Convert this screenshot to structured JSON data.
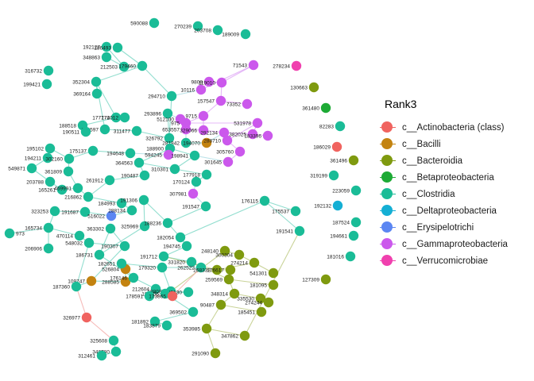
{
  "legend": {
    "title": "Rank3",
    "entries": [
      {
        "label": "c__Actinobacteria (class)",
        "color": "#F0635F"
      },
      {
        "label": "c__Bacilli",
        "color": "#C38310"
      },
      {
        "label": "c__Bacteroidia",
        "color": "#7F9A0F"
      },
      {
        "label": "c__Betaproteobacteria",
        "color": "#1DAA35"
      },
      {
        "label": "c__Clostridia",
        "color": "#1ABC97"
      },
      {
        "label": "c__Deltaproteobacteria",
        "color": "#14AFD4"
      },
      {
        "label": "c__Erysipelotrichi",
        "color": "#5B86F2"
      },
      {
        "label": "c__Gammaproteobacteria",
        "color": "#CB58EC"
      },
      {
        "label": "c__Verrucomicrobiae",
        "color": "#F040AE"
      }
    ]
  },
  "network": {
    "nodes": [
      {
        "id": "590088",
        "class": "c__Clostridia"
      },
      {
        "id": "270239",
        "class": "c__Clostridia"
      },
      {
        "id": "203708",
        "class": "c__Clostridia"
      },
      {
        "id": "189009",
        "class": "c__Clostridia"
      },
      {
        "id": "192127",
        "class": "c__Clostridia"
      },
      {
        "id": "186493",
        "class": "c__Clostridia"
      },
      {
        "id": "348863",
        "class": "c__Clostridia"
      },
      {
        "id": "212503",
        "class": "c__Clostridia"
      },
      {
        "id": "179460",
        "class": "c__Clostridia"
      },
      {
        "id": "316732",
        "class": "c__Clostridia"
      },
      {
        "id": "199421",
        "class": "c__Clostridia"
      },
      {
        "id": "352304",
        "class": "c__Clostridia"
      },
      {
        "id": "369164",
        "class": "c__Clostridia"
      },
      {
        "id": "294710",
        "class": "c__Clostridia"
      },
      {
        "id": "71543",
        "class": "c__Gammaproteobacteria"
      },
      {
        "id": "278234",
        "class": "c__Verrucomicrobiae"
      },
      {
        "id": "130663",
        "class": "c__Bacteroidia"
      },
      {
        "id": "10116",
        "class": "c__Gammaproteobacteria"
      },
      {
        "id": "9808",
        "class": "c__Gammaproteobacteria"
      },
      {
        "id": "119010",
        "class": "c__Gammaproteobacteria"
      },
      {
        "id": "157547",
        "class": "c__Gammaproteobacteria"
      },
      {
        "id": "73352",
        "class": "c__Gammaproteobacteria"
      },
      {
        "id": "361480",
        "class": "c__Betaproteobacteria"
      },
      {
        "id": "293896",
        "class": "c__Clostridia"
      },
      {
        "id": "512100",
        "class": "c__Gammaproteobacteria"
      },
      {
        "id": "9715",
        "class": "c__Gammaproteobacteria"
      },
      {
        "id": "177772",
        "class": "c__Clostridia"
      },
      {
        "id": "174012",
        "class": "c__Clostridia"
      },
      {
        "id": "975",
        "class": "c__Gammaproteobacteria"
      },
      {
        "id": "531978",
        "class": "c__Gammaproteobacteria"
      },
      {
        "id": "82283",
        "class": "c__Clostridia"
      },
      {
        "id": "188518",
        "class": "c__Clostridia"
      },
      {
        "id": "190597",
        "class": "c__Clostridia"
      },
      {
        "id": "311477",
        "class": "c__Clostridia"
      },
      {
        "id": "190511",
        "class": "c__Clostridia"
      },
      {
        "id": "653557",
        "class": "c__Gammaproteobacteria"
      },
      {
        "id": "329066",
        "class": "c__Gammaproteobacteria"
      },
      {
        "id": "292134",
        "class": "c__Gammaproteobacteria"
      },
      {
        "id": "382025",
        "class": "c__Gammaproteobacteria"
      },
      {
        "id": "183396",
        "class": "c__Gammaproteobacteria"
      },
      {
        "id": "326792",
        "class": "c__Clostridia"
      },
      {
        "id": "281842",
        "class": "c__Clostridia"
      },
      {
        "id": "194070",
        "class": "c__Bacilli"
      },
      {
        "id": "288710",
        "class": "c__Gammaproteobacteria"
      },
      {
        "id": "186029",
        "class": "c__Actinobacteria (class)"
      },
      {
        "id": "195102",
        "class": "c__Clostridia"
      },
      {
        "id": "188900",
        "class": "c__Clostridia"
      },
      {
        "id": "194211",
        "class": "c__Clostridia"
      },
      {
        "id": "302160",
        "class": "c__Clostridia"
      },
      {
        "id": "175137",
        "class": "c__Clostridia"
      },
      {
        "id": "194648",
        "class": "c__Clostridia"
      },
      {
        "id": "594245",
        "class": "c__Gammaproteobacteria"
      },
      {
        "id": "305760",
        "class": "c__Gammaproteobacteria"
      },
      {
        "id": "301645",
        "class": "c__Gammaproteobacteria"
      },
      {
        "id": "361496",
        "class": "c__Bacteroidia"
      },
      {
        "id": "549871",
        "class": "c__Clostridia"
      },
      {
        "id": "364563",
        "class": "c__Clostridia"
      },
      {
        "id": "198941",
        "class": "c__Clostridia"
      },
      {
        "id": "319199",
        "class": "c__Clostridia"
      },
      {
        "id": "361809",
        "class": "c__Clostridia"
      },
      {
        "id": "190487",
        "class": "c__Clostridia"
      },
      {
        "id": "310301",
        "class": "c__Clostridia"
      },
      {
        "id": "177918",
        "class": "c__Clostridia"
      },
      {
        "id": "203788",
        "class": "c__Clostridia"
      },
      {
        "id": "165261",
        "class": "c__Clostridia"
      },
      {
        "id": "469991",
        "class": "c__Clostridia"
      },
      {
        "id": "261912",
        "class": "c__Clostridia"
      },
      {
        "id": "223059",
        "class": "c__Clostridia"
      },
      {
        "id": "216862",
        "class": "c__Clostridia"
      },
      {
        "id": "170124",
        "class": "c__Clostridia"
      },
      {
        "id": "307981",
        "class": "c__Gammaproteobacteria"
      },
      {
        "id": "192132",
        "class": "c__Deltaproteobacteria"
      },
      {
        "id": "184993",
        "class": "c__Clostridia"
      },
      {
        "id": "323253",
        "class": "c__Clostridia"
      },
      {
        "id": "191687",
        "class": "c__Clostridia"
      },
      {
        "id": "516022",
        "class": "c__Erysipelotrichi"
      },
      {
        "id": "288134",
        "class": "c__Clostridia"
      },
      {
        "id": "191306",
        "class": "c__Clostridia"
      },
      {
        "id": "176115",
        "class": "c__Clostridia"
      },
      {
        "id": "175537",
        "class": "c__Clostridia"
      },
      {
        "id": "191547",
        "class": "c__Clostridia"
      },
      {
        "id": "187524",
        "class": "c__Clostridia"
      },
      {
        "id": "973",
        "class": "c__Clostridia"
      },
      {
        "id": "165734",
        "class": "c__Clostridia"
      },
      {
        "id": "363302",
        "class": "c__Clostridia"
      },
      {
        "id": "325969",
        "class": "c__Clostridia"
      },
      {
        "id": "188236",
        "class": "c__Clostridia"
      },
      {
        "id": "191541",
        "class": "c__Clostridia"
      },
      {
        "id": "194661",
        "class": "c__Clostridia"
      },
      {
        "id": "470114",
        "class": "c__Clostridia"
      },
      {
        "id": "182054",
        "class": "c__Clostridia"
      },
      {
        "id": "206906",
        "class": "c__Clostridia"
      },
      {
        "id": "548032",
        "class": "c__Clostridia"
      },
      {
        "id": "190307",
        "class": "c__Clostridia"
      },
      {
        "id": "194745",
        "class": "c__Clostridia"
      },
      {
        "id": "248140",
        "class": "c__Bacteroidia"
      },
      {
        "id": "181016",
        "class": "c__Clostridia"
      },
      {
        "id": "300304",
        "class": "c__Bacteroidia"
      },
      {
        "id": "186731",
        "class": "c__Clostridia"
      },
      {
        "id": "191712",
        "class": "c__Clostridia"
      },
      {
        "id": "331820",
        "class": "c__Clostridia"
      },
      {
        "id": "274214",
        "class": "c__Bacteroidia"
      },
      {
        "id": "526804",
        "class": "c__Bacilli"
      },
      {
        "id": "182651",
        "class": "c__Clostridia"
      },
      {
        "id": "179320",
        "class": "c__Clostridia"
      },
      {
        "id": "262522",
        "class": "c__Clostridia"
      },
      {
        "id": "268332",
        "class": "c__Bacteroidia"
      },
      {
        "id": "176617",
        "class": "c__Bacteroidia"
      },
      {
        "id": "541301",
        "class": "c__Bacteroidia"
      },
      {
        "id": "127309",
        "class": "c__Bacteroidia"
      },
      {
        "id": "109747",
        "class": "c__Bacilli"
      },
      {
        "id": "288585",
        "class": "c__Bacilli"
      },
      {
        "id": "176146",
        "class": "c__Clostridia"
      },
      {
        "id": "259569",
        "class": "c__Bacteroidia"
      },
      {
        "id": "181095",
        "class": "c__Bacteroidia"
      },
      {
        "id": "187360",
        "class": "c__Clostridia"
      },
      {
        "id": "212604",
        "class": "c__Clostridia"
      },
      {
        "id": "188080",
        "class": "c__Clostridia"
      },
      {
        "id": "329130",
        "class": "c__Clostridia"
      },
      {
        "id": "348314",
        "class": "c__Bacteroidia"
      },
      {
        "id": "187706",
        "class": "c__Clostridia"
      },
      {
        "id": "178591",
        "class": "c__Clostridia"
      },
      {
        "id": "173865",
        "class": "c__Actinobacteria (class)"
      },
      {
        "id": "335530",
        "class": "c__Bacteroidia"
      },
      {
        "id": "274244",
        "class": "c__Bacteroidia"
      },
      {
        "id": "90487",
        "class": "c__Bacteroidia"
      },
      {
        "id": "185451",
        "class": "c__Bacteroidia"
      },
      {
        "id": "326977",
        "class": "c__Actinobacteria (class)"
      },
      {
        "id": "369502",
        "class": "c__Clostridia"
      },
      {
        "id": "181892",
        "class": "c__Clostridia"
      },
      {
        "id": "183879",
        "class": "c__Clostridia"
      },
      {
        "id": "353985",
        "class": "c__Bacteroidia"
      },
      {
        "id": "347862",
        "class": "c__Bacteroidia"
      },
      {
        "id": "325608",
        "class": "c__Clostridia"
      },
      {
        "id": "346780",
        "class": "c__Clostridia"
      },
      {
        "id": "312461",
        "class": "c__Clostridia"
      },
      {
        "id": "291090",
        "class": "c__Bacteroidia"
      }
    ],
    "edges": [
      [
        "186493",
        "179460"
      ],
      [
        "192127",
        "212503"
      ],
      [
        "212503",
        "179460"
      ],
      [
        "348863",
        "212503"
      ],
      [
        "179460",
        "352304"
      ],
      [
        "179460",
        "294710"
      ],
      [
        "352304",
        "369164"
      ],
      [
        "352304",
        "190597"
      ],
      [
        "294710",
        "326792"
      ],
      [
        "294710",
        "10116"
      ],
      [
        "352304",
        "177772"
      ],
      [
        "174012",
        "177772"
      ],
      [
        "177772",
        "188518"
      ],
      [
        "188518",
        "190511"
      ],
      [
        "190597",
        "311477"
      ],
      [
        "311477",
        "326792"
      ],
      [
        "326792",
        "293896"
      ],
      [
        "293896",
        "512100"
      ],
      [
        "10116",
        "9808"
      ],
      [
        "9808",
        "119010"
      ],
      [
        "119010",
        "71543"
      ],
      [
        "71543",
        "10116"
      ],
      [
        "119010",
        "157547"
      ],
      [
        "157547",
        "73352"
      ],
      [
        "157547",
        "9715"
      ],
      [
        "9715",
        "975"
      ],
      [
        "975",
        "531978"
      ],
      [
        "531978",
        "382025"
      ],
      [
        "382025",
        "183396"
      ],
      [
        "512100",
        "653557"
      ],
      [
        "653557",
        "329066"
      ],
      [
        "329066",
        "292134"
      ],
      [
        "292134",
        "288710"
      ],
      [
        "288710",
        "305760"
      ],
      [
        "305760",
        "301645"
      ],
      [
        "301645",
        "198941"
      ],
      [
        "198941",
        "188900"
      ],
      [
        "188900",
        "594245"
      ],
      [
        "594245",
        "194648"
      ],
      [
        "194648",
        "175137"
      ],
      [
        "175137",
        "302160"
      ],
      [
        "302160",
        "195102"
      ],
      [
        "195102",
        "194211"
      ],
      [
        "194211",
        "549871"
      ],
      [
        "549871",
        "203788"
      ],
      [
        "203788",
        "165261"
      ],
      [
        "165261",
        "469991"
      ],
      [
        "469991",
        "361809"
      ],
      [
        "361809",
        "302160"
      ],
      [
        "469991",
        "216862"
      ],
      [
        "216862",
        "261912"
      ],
      [
        "261912",
        "190487"
      ],
      [
        "190487",
        "364563"
      ],
      [
        "364563",
        "310301"
      ],
      [
        "310301",
        "177918"
      ],
      [
        "177918",
        "170124"
      ],
      [
        "170124",
        "307981"
      ],
      [
        "307981",
        "191547"
      ],
      [
        "310301",
        "198941"
      ],
      [
        "216862",
        "184993"
      ],
      [
        "184993",
        "288134"
      ],
      [
        "288134",
        "516022"
      ],
      [
        "516022",
        "191687"
      ],
      [
        "191687",
        "323253"
      ],
      [
        "323253",
        "165734"
      ],
      [
        "165734",
        "973"
      ],
      [
        "165734",
        "206906"
      ],
      [
        "165734",
        "470114"
      ],
      [
        "470114",
        "548032"
      ],
      [
        "548032",
        "190307"
      ],
      [
        "190307",
        "363302"
      ],
      [
        "363302",
        "186731"
      ],
      [
        "186731",
        "325969"
      ],
      [
        "325969",
        "191306"
      ],
      [
        "191306",
        "188236"
      ],
      [
        "188236",
        "182054"
      ],
      [
        "182054",
        "194745"
      ],
      [
        "194745",
        "191712"
      ],
      [
        "191712",
        "331820"
      ],
      [
        "331820",
        "262522"
      ],
      [
        "262522",
        "179320"
      ],
      [
        "179320",
        "182651"
      ],
      [
        "182651",
        "526804"
      ],
      [
        "526804",
        "176146"
      ],
      [
        "176146",
        "212604"
      ],
      [
        "212604",
        "188080"
      ],
      [
        "188080",
        "173865"
      ],
      [
        "173865",
        "178591"
      ],
      [
        "188080",
        "329130"
      ],
      [
        "329130",
        "187706"
      ],
      [
        "187706",
        "369502"
      ],
      [
        "369502",
        "181892"
      ],
      [
        "181892",
        "183879"
      ],
      [
        "188080",
        "248140"
      ],
      [
        "248140",
        "300304"
      ],
      [
        "300304",
        "274214"
      ],
      [
        "274214",
        "541301"
      ],
      [
        "274214",
        "268332"
      ],
      [
        "268332",
        "176617"
      ],
      [
        "176617",
        "259569"
      ],
      [
        "259569",
        "181095"
      ],
      [
        "259569",
        "348314"
      ],
      [
        "348314",
        "335530"
      ],
      [
        "335530",
        "274244"
      ],
      [
        "348314",
        "90487"
      ],
      [
        "90487",
        "185451"
      ],
      [
        "90487",
        "353985"
      ],
      [
        "353985",
        "347862"
      ],
      [
        "353985",
        "291090"
      ],
      [
        "347862",
        "191541"
      ],
      [
        "191541",
        "176115"
      ],
      [
        "176115",
        "175537"
      ],
      [
        "182054",
        "176115"
      ],
      [
        "188236",
        "191547"
      ],
      [
        "109747",
        "288585"
      ],
      [
        "288585",
        "526804"
      ],
      [
        "109747",
        "187360"
      ],
      [
        "187360",
        "326977"
      ],
      [
        "326977",
        "325608"
      ],
      [
        "325608",
        "346780"
      ],
      [
        "346780",
        "312461"
      ],
      [
        "190307",
        "109747"
      ],
      [
        "548032",
        "187360"
      ],
      [
        "531978",
        "288710"
      ],
      [
        "292134",
        "382025"
      ],
      [
        "9715",
        "329066"
      ],
      [
        "653557",
        "281842"
      ],
      [
        "281842",
        "194070"
      ],
      [
        "194070",
        "292134"
      ],
      [
        "188900",
        "364563"
      ],
      [
        "186731",
        "176146"
      ],
      [
        "191712",
        "268332"
      ],
      [
        "331820",
        "259569"
      ],
      [
        "262522",
        "173865"
      ],
      [
        "179320",
        "188080"
      ]
    ]
  }
}
